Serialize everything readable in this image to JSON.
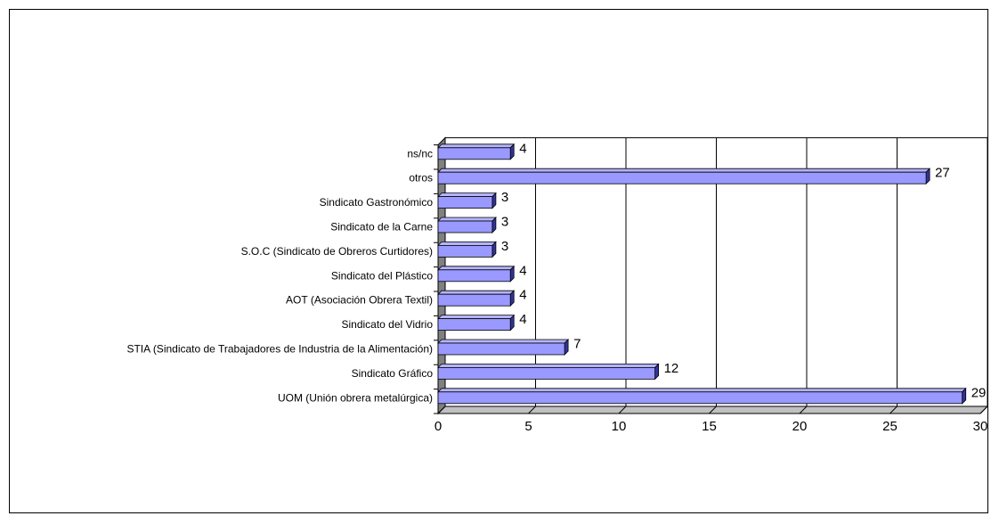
{
  "chart_data": {
    "type": "bar",
    "orientation": "horizontal",
    "categories": [
      "UOM (Unión obrera metalúrgica)",
      "Sindicato Gráfico",
      "STIA (Sindicato de Trabajadores de Industria de la Alimentación)",
      "Sindicato del Vidrio",
      "AOT (Asociación Obrera Textil)",
      "Sindicato del Plástico",
      "S.O.C (Sindicato de Obreros Curtidores)",
      "Sindicato de la Carne",
      "Sindicato Gastronómico",
      "otros",
      "ns/nc"
    ],
    "values": [
      29,
      12,
      7,
      4,
      4,
      4,
      3,
      3,
      3,
      27,
      4
    ],
    "xlim": [
      0,
      30
    ],
    "xticks": [
      0,
      5,
      10,
      15,
      20,
      25,
      30
    ],
    "grid": "vertical",
    "legend": "none",
    "style": "3d",
    "title": "",
    "xlabel": "",
    "ylabel": ""
  },
  "colors": {
    "bar_face": "#9999ff",
    "bar_top": "#b3b3ff",
    "bar_side": "#333399",
    "back_wall": "#ffffff",
    "side_wall": "#808080",
    "grid": "#000000"
  }
}
